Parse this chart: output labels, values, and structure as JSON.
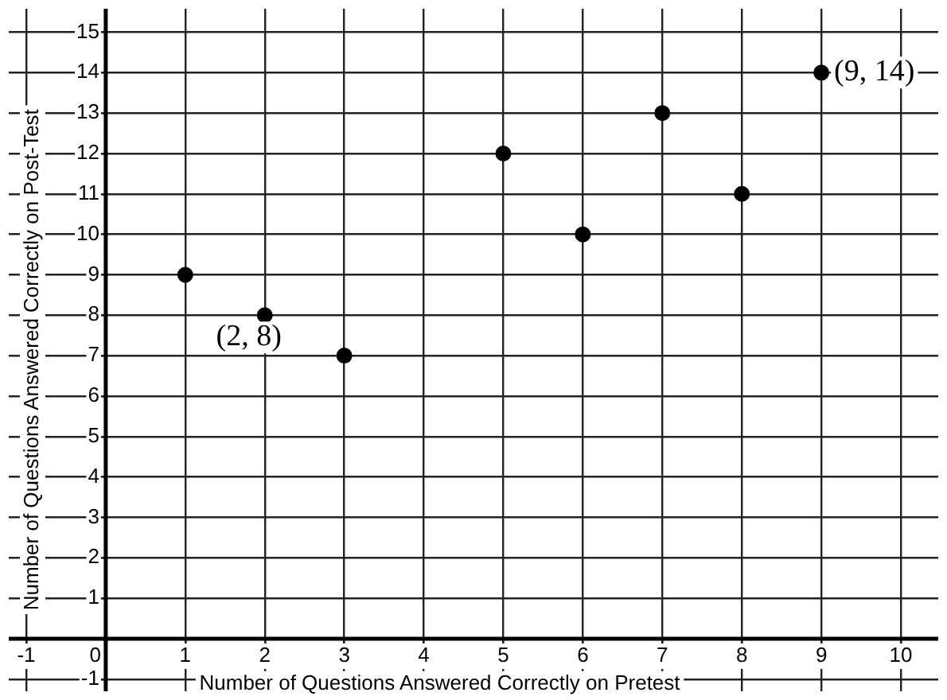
{
  "chart_data": {
    "type": "scatter",
    "xlabel": "Number of Questions Answered Correctly on Pretest",
    "ylabel": "Number of Questions Answered Correctly on Post-Test",
    "x": [
      1,
      2,
      3,
      5,
      6,
      7,
      8,
      9
    ],
    "values": [
      9,
      8,
      7,
      12,
      10,
      13,
      11,
      14
    ],
    "color": "#000000",
    "marker": "circle",
    "grid": true,
    "xlim": [
      -1.22,
      10.47
    ],
    "ylim": [
      -1.3,
      15.58
    ],
    "xticks": [
      -1,
      0,
      1,
      2,
      3,
      4,
      5,
      6,
      7,
      8,
      9,
      10
    ],
    "yticks": [
      -1,
      {
        "value": 0,
        "label": null
      },
      1,
      2,
      3,
      4,
      5,
      6,
      7,
      8,
      9,
      10,
      11,
      12,
      13,
      14,
      15
    ],
    "annotations": [
      {
        "text": "(2, 8)",
        "x": 2,
        "y": 8
      },
      {
        "text": "(9, 14)",
        "x": 9,
        "y": 14
      }
    ]
  }
}
